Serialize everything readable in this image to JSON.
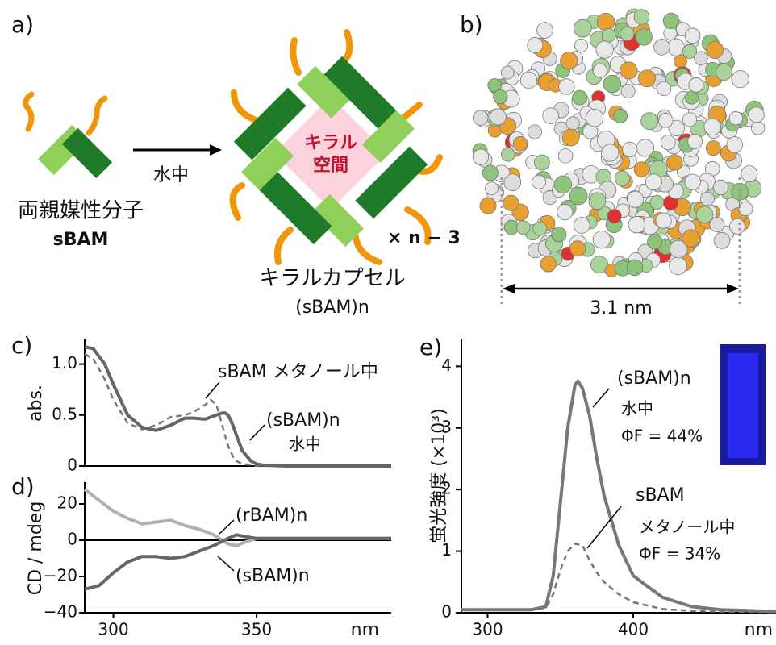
{
  "panels": {
    "a": {
      "label": "a)",
      "arrow_label": "水中",
      "molecule": "両親媒性分子",
      "molecule_name": "sBAM",
      "cavity": [
        "キラル",
        "空間"
      ],
      "multiplier": "× n − 3",
      "capsule": "キラルカプセル",
      "capsule_name": "(sBAM)n"
    },
    "b": {
      "label": "b)",
      "scale": "3.1 nm"
    }
  },
  "chart_data": [
    {
      "type": "line",
      "panel_label": "c)",
      "ylabel": "abs.",
      "xlim": [
        290,
        397
      ],
      "ylim": [
        0,
        1.25
      ],
      "yticks": [
        0,
        0.5,
        {
          "value": 1,
          "label": "1.0"
        }
      ],
      "x": [
        290,
        293,
        297,
        300,
        305,
        310,
        315,
        320,
        325,
        328,
        332,
        334,
        336,
        338,
        339,
        340,
        341,
        342,
        343,
        345,
        348,
        350,
        352,
        360,
        397
      ],
      "series": [
        {
          "name": "sBAM メタノール中",
          "notes": [],
          "color": "#777",
          "dash": true,
          "values": [
            1.1,
            1.05,
            0.85,
            0.65,
            0.42,
            0.36,
            0.4,
            0.48,
            0.5,
            0.53,
            0.6,
            0.65,
            0.6,
            0.4,
            0.3,
            0.2,
            0.14,
            0.08,
            0.05,
            0.02,
            0.01,
            0,
            0,
            0,
            0
          ]
        },
        {
          "name": "(sBAM)n",
          "notes": [
            "水中"
          ],
          "color": "#666",
          "dash": false,
          "values": [
            1.17,
            1.15,
            1.0,
            0.8,
            0.5,
            0.38,
            0.35,
            0.4,
            0.47,
            0.47,
            0.46,
            0.48,
            0.5,
            0.52,
            0.52,
            0.5,
            0.45,
            0.38,
            0.3,
            0.15,
            0.05,
            0.02,
            0.01,
            0,
            0
          ]
        }
      ]
    },
    {
      "type": "line",
      "panel_label": "d)",
      "ylabel": "CD / mdeg",
      "xlabel": "nm",
      "xlim": [
        290,
        397
      ],
      "ylim": [
        -40,
        32
      ],
      "xticks": [
        300,
        350
      ],
      "yticks": [
        {
          "value": -40,
          "label": "−40"
        },
        {
          "value": -20,
          "label": "−20"
        },
        0,
        20
      ],
      "zero_line": true,
      "x": [
        290,
        295,
        300,
        305,
        310,
        315,
        320,
        325,
        330,
        335,
        340,
        343,
        346,
        350,
        397
      ],
      "series": [
        {
          "name": "(rBAM)n",
          "notes": [],
          "color": "#b0b0b0",
          "dash": false,
          "values": [
            28,
            22,
            16,
            12,
            9,
            10,
            11,
            8,
            6,
            3,
            -2,
            -3,
            -1,
            1,
            1
          ]
        },
        {
          "name": "(sBAM)n",
          "notes": [],
          "color": "#666",
          "dash": false,
          "values": [
            -27,
            -25,
            -18,
            -12,
            -9,
            -9,
            -10,
            -9,
            -6,
            -3,
            1,
            3,
            2,
            1,
            1
          ]
        }
      ]
    },
    {
      "type": "line",
      "panel_label": "e)",
      "ylabel": "蛍光強度 (×10³)",
      "xlabel": "nm",
      "xlim": [
        282,
        498
      ],
      "ylim": [
        0,
        4.45
      ],
      "xticks": [
        300,
        400
      ],
      "yticks": [
        0,
        1,
        2,
        3,
        4
      ],
      "x": [
        282,
        330,
        340,
        345,
        350,
        355,
        360,
        362,
        365,
        370,
        375,
        380,
        390,
        400,
        420,
        440,
        460,
        498
      ],
      "series": [
        {
          "name": "(sBAM)n",
          "notes": [
            "水中",
            "ΦF = 44%"
          ],
          "color": "#777",
          "dash": false,
          "values": [
            0.05,
            0.05,
            0.1,
            0.6,
            1.8,
            3.0,
            3.7,
            3.76,
            3.65,
            3.2,
            2.5,
            1.9,
            1.1,
            0.6,
            0.25,
            0.1,
            0.05,
            0.02
          ]
        },
        {
          "name": "sBAM",
          "notes": [
            "メタノール中",
            "ΦF = 34%"
          ],
          "color": "#777",
          "dash": true,
          "values": [
            0.05,
            0.05,
            0.08,
            0.3,
            0.7,
            1.0,
            1.12,
            1.11,
            1.1,
            0.85,
            0.65,
            0.5,
            0.3,
            0.17,
            0.06,
            0.03,
            0.02,
            0.01
          ]
        }
      ]
    }
  ]
}
